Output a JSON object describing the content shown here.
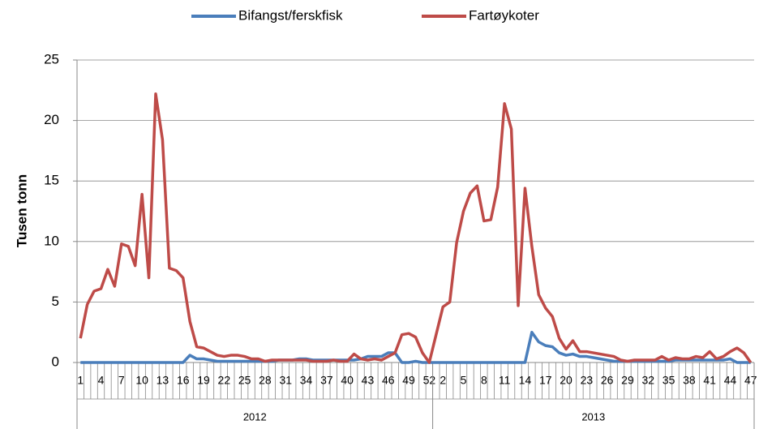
{
  "chart_data": {
    "type": "line",
    "y_label": "Tusen tonn",
    "category_groups": [
      {
        "label": "2012",
        "size": 52
      },
      {
        "label": "2013",
        "size": 47
      }
    ],
    "categories": [
      "1",
      null,
      null,
      "4",
      null,
      null,
      "7",
      null,
      null,
      "10",
      null,
      null,
      "13",
      null,
      null,
      "16",
      null,
      null,
      "19",
      null,
      null,
      "22",
      null,
      null,
      "25",
      null,
      null,
      "28",
      null,
      null,
      "31",
      null,
      null,
      "34",
      null,
      null,
      "37",
      null,
      null,
      "40",
      null,
      null,
      "43",
      null,
      null,
      "46",
      null,
      null,
      "49",
      null,
      null,
      "52",
      null,
      "2",
      null,
      null,
      "5",
      null,
      null,
      "8",
      null,
      null,
      "11",
      null,
      null,
      "14",
      null,
      null,
      "17",
      null,
      null,
      "20",
      null,
      null,
      "23",
      null,
      null,
      "26",
      null,
      null,
      "29",
      null,
      null,
      "32",
      null,
      null,
      "35",
      null,
      null,
      "38",
      null,
      null,
      "41",
      null,
      null,
      "44",
      null,
      null,
      "47"
    ],
    "series": [
      {
        "name": "Bifangst/ferskfisk",
        "color": "#4a7ebb",
        "values": [
          0,
          0,
          0,
          0,
          0,
          0,
          0,
          0,
          0,
          0,
          0,
          0,
          0,
          0,
          0,
          0,
          0.6,
          0.3,
          0.3,
          0.2,
          0.1,
          0.1,
          0.1,
          0.1,
          0.1,
          0.1,
          0.1,
          0.1,
          0.1,
          0.2,
          0.2,
          0.2,
          0.3,
          0.3,
          0.2,
          0.2,
          0.2,
          0.2,
          0.2,
          0.2,
          0.2,
          0.3,
          0.5,
          0.5,
          0.5,
          0.8,
          0.8,
          0,
          0,
          0.1,
          0,
          0,
          0,
          0,
          0,
          0,
          0,
          0,
          0,
          0,
          0,
          0,
          0,
          0,
          0,
          0,
          2.5,
          1.7,
          1.4,
          1.3,
          0.8,
          0.6,
          0.7,
          0.5,
          0.5,
          0.4,
          0.3,
          0.2,
          0.1,
          0.1,
          0.1,
          0.1,
          0.1,
          0.1,
          0.1,
          0.1,
          0.1,
          0.2,
          0.2,
          0.2,
          0.2,
          0.2,
          0.2,
          0.2,
          0.2,
          0.3,
          0,
          0,
          0
        ]
      },
      {
        "name": "Fartøykoter",
        "color": "#be4b48",
        "values": [
          2.0,
          4.8,
          5.9,
          6.1,
          7.7,
          6.3,
          9.8,
          9.6,
          8.0,
          13.9,
          7.0,
          22.2,
          18.4,
          7.8,
          7.6,
          7.0,
          3.4,
          1.3,
          1.2,
          0.9,
          0.6,
          0.5,
          0.6,
          0.6,
          0.5,
          0.3,
          0.3,
          0.1,
          0.2,
          0.2,
          0.2,
          0.2,
          0.2,
          0.2,
          0.1,
          0.1,
          0.1,
          0.2,
          0.1,
          0.1,
          0.7,
          0.3,
          0.2,
          0.3,
          0.2,
          0.5,
          0.8,
          2.3,
          2.4,
          2.1,
          0.8,
          0,
          2.3,
          4.6,
          5.0,
          9.9,
          12.5,
          14.0,
          14.6,
          11.7,
          11.8,
          14.5,
          21.4,
          19.3,
          4.7,
          14.4,
          9.6,
          5.6,
          4.5,
          3.8,
          2.0,
          1.1,
          1.8,
          0.9,
          0.9,
          0.8,
          0.7,
          0.6,
          0.5,
          0.2,
          0.1,
          0.2,
          0.2,
          0.2,
          0.2,
          0.5,
          0.2,
          0.4,
          0.3,
          0.3,
          0.5,
          0.4,
          0.9,
          0.3,
          0.5,
          0.9,
          1.2,
          0.8,
          0
        ]
      }
    ],
    "ylim": [
      0,
      25
    ],
    "yticks": [
      0,
      5,
      10,
      15,
      20,
      25
    ],
    "grid": true
  }
}
